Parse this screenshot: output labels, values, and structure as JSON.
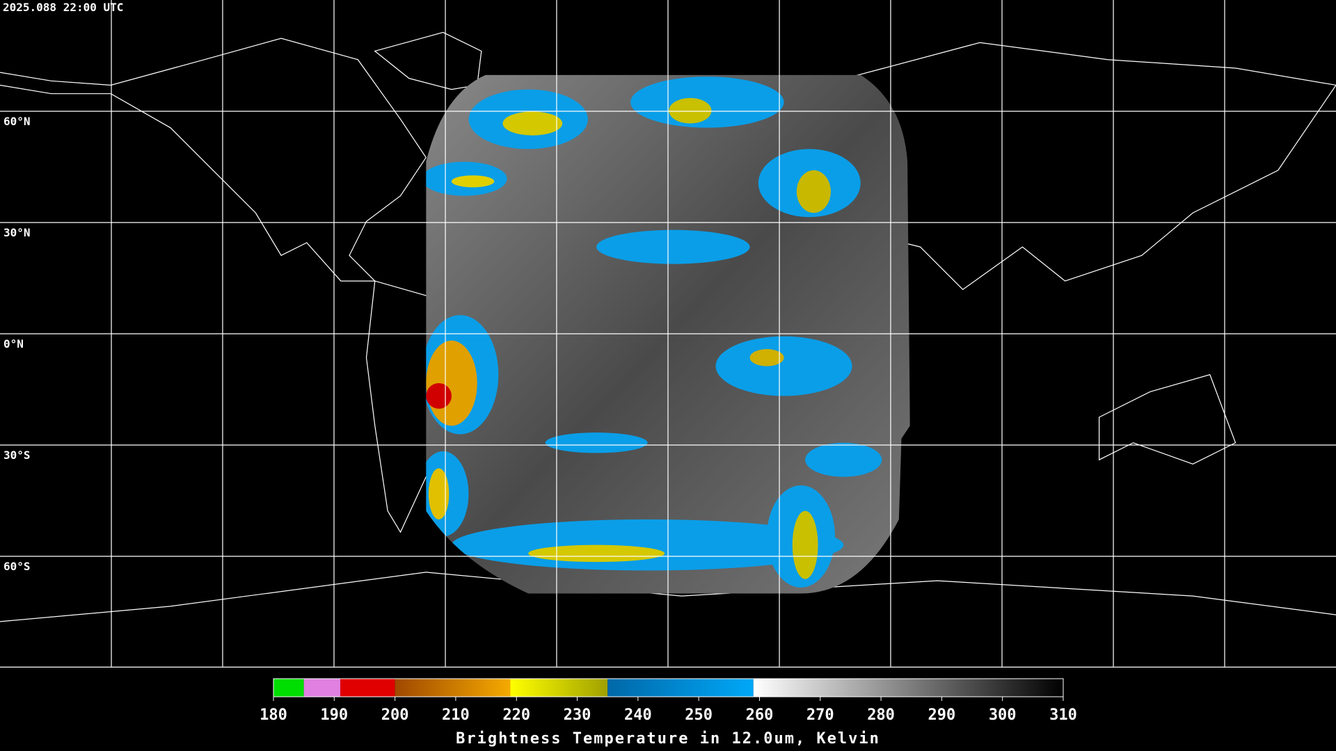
{
  "timestamp": "2025.088 22:00 UTC",
  "latitude_labels": [
    "60°N",
    "30°N",
    "0°N",
    "30°S",
    "60°S"
  ],
  "colorbar": {
    "title": "Brightness Temperature in 12.0um, Kelvin",
    "range": [
      180,
      310
    ],
    "ticks": [
      180,
      190,
      200,
      210,
      220,
      230,
      240,
      250,
      260,
      270,
      280,
      290,
      300,
      310
    ],
    "segments": [
      {
        "from": 180,
        "to": 185,
        "colors": [
          "#00dd00",
          "#00dd00"
        ]
      },
      {
        "from": 185,
        "to": 191,
        "colors": [
          "#e080e0",
          "#e080e0"
        ]
      },
      {
        "from": 191,
        "to": 200,
        "colors": [
          "#e00000",
          "#e00000"
        ]
      },
      {
        "from": 200,
        "to": 219,
        "colors": [
          "#a04800",
          "#f4aa00"
        ]
      },
      {
        "from": 219,
        "to": 235,
        "colors": [
          "#ffff00",
          "#a0a000"
        ]
      },
      {
        "from": 235,
        "to": 259,
        "colors": [
          "#0068a8",
          "#00a8f8"
        ]
      },
      {
        "from": 259,
        "to": 310,
        "colors": [
          "#ffffff",
          "#000000"
        ]
      }
    ]
  }
}
